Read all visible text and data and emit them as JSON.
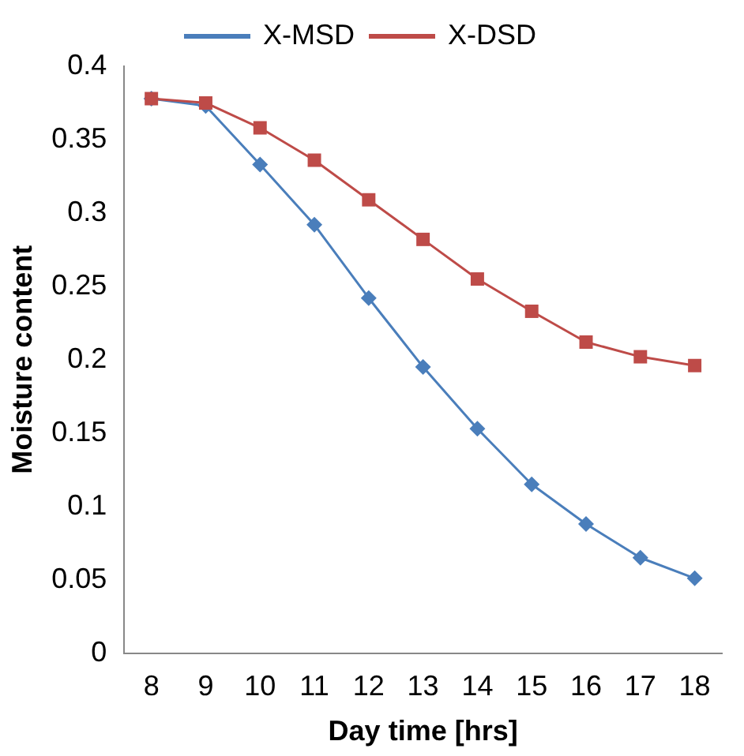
{
  "chart_data": {
    "type": "line",
    "xlabel": "Day time [hrs]",
    "ylabel": "Moisture content",
    "categories": [
      "8",
      "9",
      "10",
      "11",
      "12",
      "13",
      "14",
      "15",
      "16",
      "17",
      "18"
    ],
    "series": [
      {
        "name": "X-MSD",
        "color": "#4a7ebb",
        "marker": "diamond",
        "values": [
          0.378,
          0.373,
          0.333,
          0.292,
          0.242,
          0.195,
          0.153,
          0.115,
          0.088,
          0.065,
          0.051
        ]
      },
      {
        "name": "X-DSD",
        "color": "#be4b48",
        "marker": "square",
        "values": [
          0.378,
          0.375,
          0.358,
          0.336,
          0.309,
          0.282,
          0.255,
          0.233,
          0.212,
          0.202,
          0.196
        ]
      }
    ],
    "ylim": [
      0,
      0.4
    ],
    "yticks": [
      0,
      0.05,
      0.1,
      0.15,
      0.2,
      0.25,
      0.3,
      0.35,
      0.4
    ],
    "grid": false,
    "legend": "top",
    "line_style": "solid"
  }
}
